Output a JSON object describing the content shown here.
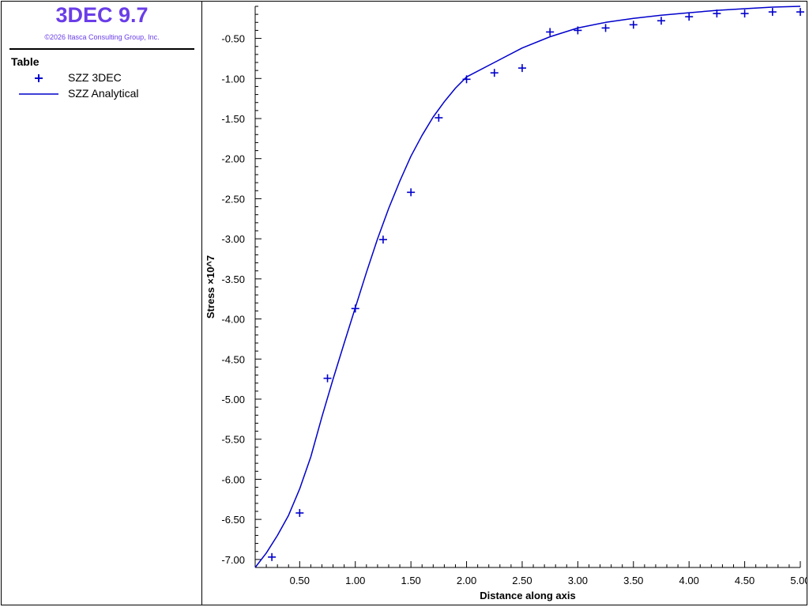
{
  "app": {
    "title": "3DEC 9.7",
    "copyright": "©2026 Itasca Consulting Group, Inc."
  },
  "legend": {
    "heading": "Table",
    "items": [
      {
        "label": "SZZ 3DEC",
        "symbol": "plus-marker"
      },
      {
        "label": "SZZ Analytical",
        "symbol": "line"
      }
    ]
  },
  "colors": {
    "series": "#0000cc",
    "title": "#6a3de8"
  },
  "chart_data": {
    "type": "line",
    "xlabel": "Distance along axis",
    "ylabel": "Stress ×10^7",
    "xlim": [
      0.1,
      5.0
    ],
    "ylim": [
      -7.1,
      -0.1
    ],
    "grid": false,
    "legend_position": "sidebar",
    "x_ticks": [
      "0.50",
      "1.00",
      "1.50",
      "2.00",
      "2.50",
      "3.00",
      "3.50",
      "4.00",
      "4.50",
      "5.00"
    ],
    "y_ticks": [
      "-0.50",
      "-1.00",
      "-1.50",
      "-2.00",
      "-2.50",
      "-3.00",
      "-3.50",
      "-4.00",
      "-4.50",
      "-5.00",
      "-5.50",
      "-6.00",
      "-6.50",
      "-7.00"
    ],
    "series": [
      {
        "name": "SZZ 3DEC",
        "kind": "scatter",
        "x": [
          0.25,
          0.5,
          0.75,
          1.0,
          1.25,
          1.5,
          1.75,
          2.0,
          2.25,
          2.5,
          2.75,
          3.0,
          3.25,
          3.5,
          3.75,
          4.0,
          4.25,
          4.5,
          4.75,
          5.0
        ],
        "y": [
          -6.97,
          -6.42,
          -4.74,
          -3.87,
          -3.01,
          -2.42,
          -1.49,
          -1.01,
          -0.93,
          -0.87,
          -0.42,
          -0.4,
          -0.37,
          -0.33,
          -0.28,
          -0.23,
          -0.19,
          -0.19,
          -0.17,
          -0.17
        ]
      },
      {
        "name": "SZZ Analytical",
        "kind": "line",
        "x": [
          0.1,
          0.2,
          0.3,
          0.4,
          0.5,
          0.6,
          0.7,
          0.8,
          0.9,
          1.0,
          1.1,
          1.2,
          1.3,
          1.4,
          1.5,
          1.6,
          1.7,
          1.8,
          1.9,
          2.0,
          2.25,
          2.5,
          2.75,
          3.0,
          3.25,
          3.5,
          3.75,
          4.0,
          4.25,
          4.5,
          4.75,
          5.0
        ],
        "y": [
          -7.1,
          -6.92,
          -6.7,
          -6.45,
          -6.12,
          -5.72,
          -5.22,
          -4.75,
          -4.3,
          -3.86,
          -3.42,
          -3.0,
          -2.62,
          -2.28,
          -1.97,
          -1.71,
          -1.48,
          -1.29,
          -1.12,
          -0.98,
          -0.8,
          -0.62,
          -0.48,
          -0.37,
          -0.3,
          -0.25,
          -0.21,
          -0.18,
          -0.15,
          -0.13,
          -0.11,
          -0.1
        ]
      }
    ]
  }
}
